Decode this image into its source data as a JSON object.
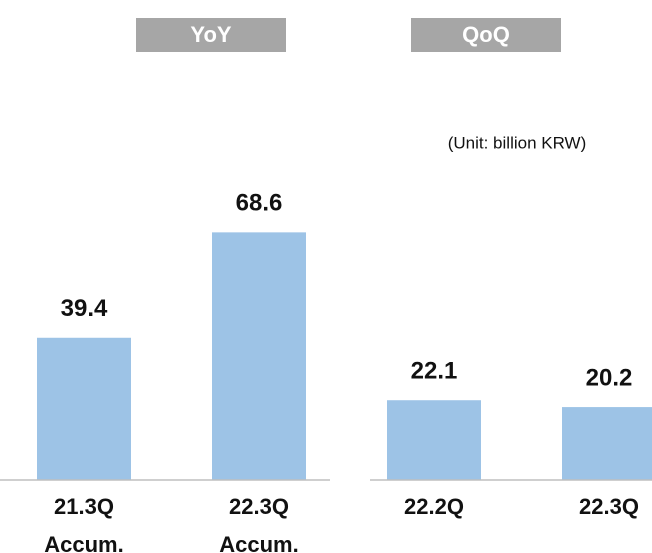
{
  "unit": "(Unit: billion KRW)",
  "chart_data": [
    {
      "type": "bar",
      "title": "YoY",
      "categories": [
        "21.3Q\nAccum.",
        "22.3Q\nAccum."
      ],
      "values": [
        39.4,
        68.6
      ],
      "color": "#9dc3e6"
    },
    {
      "type": "bar",
      "title": "QoQ",
      "categories": [
        "22.2Q",
        "22.3Q"
      ],
      "values": [
        22.1,
        20.2
      ],
      "color": "#9dc3e6"
    }
  ]
}
